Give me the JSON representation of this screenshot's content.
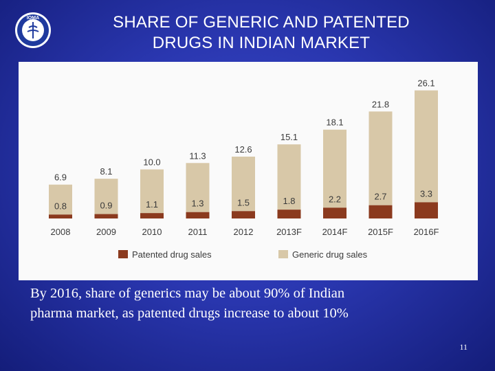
{
  "slide": {
    "title_line1": "SHARE OF GENERIC AND PATENTED",
    "title_line2": "DRUGS IN INDIAN MARKET",
    "caption_line1": "By 2016, share of generics may be about 90% of Indian",
    "caption_line2": "pharma market, as patented drugs increase to about 10%",
    "page_number": "11",
    "logo_text": "IOMA"
  },
  "colors": {
    "generic": "#d8c8a8",
    "patented": "#8b3a1e",
    "label_text": "#3a3a3a"
  },
  "chart_data": {
    "type": "bar",
    "stacked": true,
    "categories": [
      "2008",
      "2009",
      "2010",
      "2011",
      "2012",
      "2013F",
      "2014F",
      "2015F",
      "2016F"
    ],
    "totals": [
      6.9,
      8.1,
      10.0,
      11.3,
      12.6,
      15.1,
      18.1,
      21.8,
      26.1
    ],
    "total_labels": [
      "6.9",
      "8.1",
      "10.0",
      "11.3",
      "12.6",
      "15.1",
      "18.1",
      "21.8",
      "26.1"
    ],
    "series": [
      {
        "name": "Patented drug sales",
        "values": [
          0.8,
          0.9,
          1.1,
          1.3,
          1.5,
          1.8,
          2.2,
          2.7,
          3.3
        ],
        "labels": [
          "0.8",
          "0.9",
          "1.1",
          "1.3",
          "1.5",
          "1.8",
          "2.2",
          "2.7",
          "3.3"
        ]
      },
      {
        "name": "Generic drug sales",
        "values": [
          6.1,
          7.2,
          8.9,
          10.0,
          11.1,
          13.3,
          15.9,
          19.1,
          22.8
        ]
      }
    ],
    "ylim": [
      0,
      28
    ],
    "legend_position": "bottom",
    "grid": false
  }
}
